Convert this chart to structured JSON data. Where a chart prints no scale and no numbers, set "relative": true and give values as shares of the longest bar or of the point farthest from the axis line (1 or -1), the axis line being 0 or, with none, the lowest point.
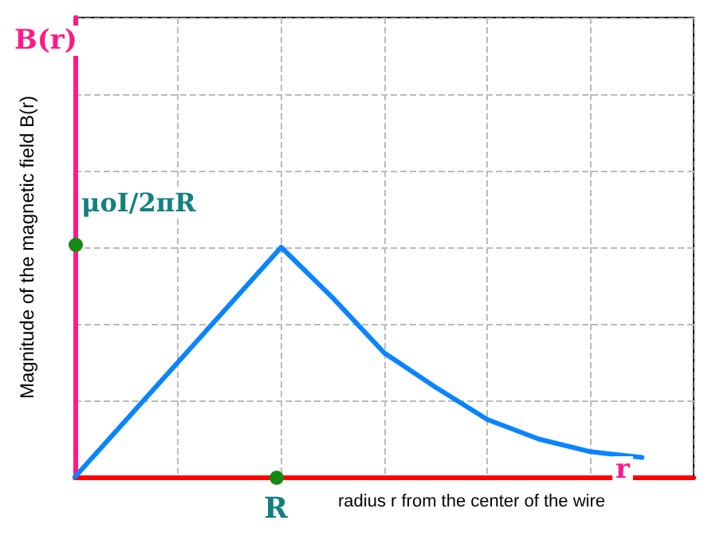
{
  "chart_data": {
    "type": "line",
    "relative": true,
    "xlabel": "radius r from the center of the wire",
    "ylabel": "Magnitude of the magnetic field B(r)",
    "categories": [
      null,
      null,
      null,
      null,
      null,
      null,
      null,
      null,
      null,
      null,
      null,
      null,
      null
    ],
    "series": [
      {
        "color": "#0a84ff",
        "values": [
          0,
          0.25,
          0.5,
          0.75,
          1,
          0.78,
          0.54,
          0.39,
          0.25,
          0.165,
          0.11,
          0.085,
          null
        ]
      }
    ],
    "annotations": [
      "B(r)",
      "r",
      "R",
      "μoI/2πR"
    ],
    "grid": true,
    "marker": "none",
    "line_style": "solid"
  }
}
